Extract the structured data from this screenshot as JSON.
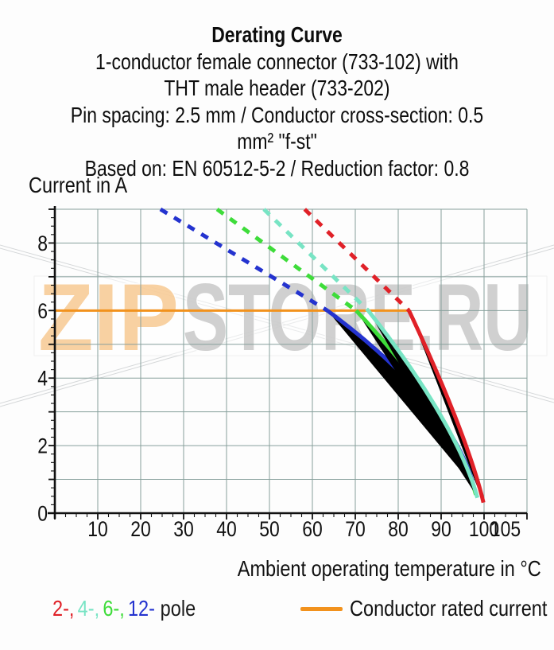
{
  "header": {
    "title": "Derating Curve",
    "subtitle_lines": [
      "1-conductor female connector (733-102) with",
      "THT male header (733-202)",
      "Pin spacing: 2.5 mm / Conductor cross-section: 0.5 mm² \"f-st\"",
      "Based on: EN 60512-5-2 / Reduction factor: 0.8"
    ]
  },
  "watermark": {
    "orange_part": "ZIP",
    "gray_part": "STORE.RU",
    "orange_color": "#f8ca92",
    "gray_color": "#c9c9c9",
    "decor_line_color": "#b6babd"
  },
  "chart_data": {
    "type": "line",
    "ylabel": "Current in A",
    "xlabel": "Ambient operating temperature in °C",
    "xlim": [
      0,
      110
    ],
    "ylim": [
      0,
      9
    ],
    "grid": true,
    "grid_color": "#87a09c",
    "axis_color": "#111111",
    "x_grid_step": 10,
    "y_grid_step": 1,
    "x_minor_tick_step": 2.5,
    "y_minor_tick_step": 0.25,
    "x_tick_labels": [
      10,
      20,
      30,
      40,
      50,
      60,
      70,
      80,
      90,
      100,
      105
    ],
    "y_tick_labels": [
      0,
      2,
      4,
      6,
      8
    ],
    "rated_current": {
      "label": "Conductor rated current",
      "y": 6,
      "x_start": 0,
      "x_end": 82.8,
      "color": "#f2921d"
    },
    "series": [
      {
        "name": "12-pole",
        "poles": 12,
        "color": "#2433cf",
        "style_above_rated": "dashed",
        "dash_start": {
          "x": 24.6,
          "y": 9
        },
        "derate_start": {
          "x": 63.5,
          "y": 6
        },
        "zero_at_x": 98.5,
        "curve_exponent": 0.55
      },
      {
        "name": "6-pole",
        "poles": 6,
        "color": "#3edc3a",
        "style_above_rated": "dashed",
        "dash_start": {
          "x": 37.8,
          "y": 9
        },
        "derate_start": {
          "x": 70.2,
          "y": 6
        },
        "zero_at_x": 98.8,
        "curve_exponent": 0.65
      },
      {
        "name": "4-pole",
        "poles": 4,
        "color": "#78e4c4",
        "style_above_rated": "dashed",
        "dash_start": {
          "x": 48.7,
          "y": 9
        },
        "derate_start": {
          "x": 73.0,
          "y": 6
        },
        "zero_at_x": 99.1,
        "curve_exponent": 0.7
      },
      {
        "name": "2-pole",
        "poles": 2,
        "color": "#e02128",
        "style_above_rated": "dashed",
        "dash_start": {
          "x": 58.2,
          "y": 9
        },
        "derate_start": {
          "x": 82.5,
          "y": 6
        },
        "zero_at_x": 100.3,
        "curve_exponent": 0.8
      }
    ]
  },
  "legend": {
    "pole_tokens": [
      {
        "text": "2-,",
        "color": "#e02128"
      },
      {
        "text": "4-,",
        "color": "#78e4c4"
      },
      {
        "text": "6-,",
        "color": "#3edc3a"
      },
      {
        "text": "12-",
        "color": "#2433cf"
      },
      {
        "text": "pole",
        "color": "#1a1a1a"
      }
    ],
    "rated_label": "Conductor rated current"
  }
}
